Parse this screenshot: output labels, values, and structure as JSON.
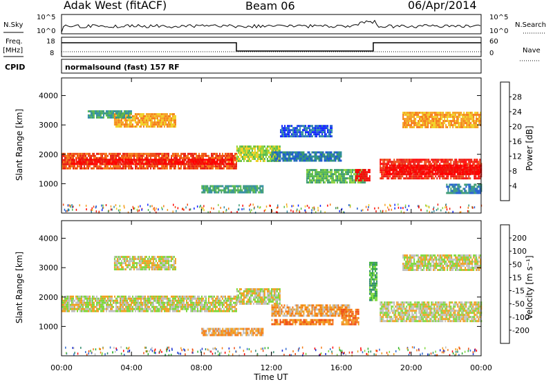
{
  "header": {
    "station": "Adak West (fitACF)",
    "beam": "Beam 06",
    "date": "06/Apr/2014"
  },
  "params": {
    "nsky_label": "N.Sky",
    "nsearch_label": "N.Search",
    "nsky_ticks": [
      "10^5",
      "10^0"
    ],
    "nsearch_ticks": [
      "10^5",
      "10^0"
    ],
    "freq_label_top": "Freq.",
    "freq_label_unit": "[MHz]",
    "freq_ticks": [
      "18",
      "8"
    ],
    "nave_label": "Nave",
    "nave_ticks": [
      "60",
      "0"
    ],
    "cpid_label": "CPID",
    "cpid_text": "normalsound (fast) 157 RF"
  },
  "chart_data": [
    {
      "type": "heatmap",
      "title": "Power",
      "xlabel": "Time UT",
      "ylabel": "Slant Range [km]",
      "xlim": [
        0,
        24
      ],
      "ylim": [
        0,
        4600
      ],
      "x_ticks": [
        "00:00",
        "04:00",
        "08:00",
        "12:00",
        "16:00",
        "20:00",
        "00:00"
      ],
      "y_ticks": [
        "1000",
        "2000",
        "3000",
        "4000"
      ],
      "colorbar": {
        "label": "Power [dB]",
        "ticks": [
          "4",
          "8",
          "12",
          "16",
          "20",
          "24",
          "28"
        ],
        "colors": [
          "#0b20ff",
          "#1f5bd0",
          "#2c8aa0",
          "#3a9a70",
          "#55b84a",
          "#8cd23a",
          "#f0d020",
          "#f5a020",
          "#f57a15",
          "#ef4a12",
          "#e81c10",
          "#ff0000"
        ]
      },
      "bands": [
        {
          "t": [
            0.0,
            10.0
          ],
          "r0": 1500,
          "r1": 2050,
          "level": 9
        },
        {
          "t": [
            0.5,
            9.8
          ],
          "r0": 1650,
          "r1": 1850,
          "level": 11
        },
        {
          "t": [
            10.0,
            12.5
          ],
          "r0": 1750,
          "r1": 2300,
          "level": 5
        },
        {
          "t": [
            12.0,
            16.0
          ],
          "r0": 1800,
          "r1": 2100,
          "level": 2
        },
        {
          "t": [
            14.0,
            17.4
          ],
          "r0": 1050,
          "r1": 1500,
          "level": 4
        },
        {
          "t": [
            16.8,
            17.6
          ],
          "r0": 1100,
          "r1": 1500,
          "level": 11
        },
        {
          "t": [
            8.0,
            11.5
          ],
          "r0": 700,
          "r1": 950,
          "level": 3
        },
        {
          "t": [
            3.0,
            6.5
          ],
          "r0": 2950,
          "r1": 3400,
          "level": 7
        },
        {
          "t": [
            1.5,
            4.0
          ],
          "r0": 3250,
          "r1": 3500,
          "level": 3
        },
        {
          "t": [
            18.2,
            24.0
          ],
          "r0": 1200,
          "r1": 1850,
          "level": 10
        },
        {
          "t": [
            18.5,
            24.0
          ],
          "r0": 1300,
          "r1": 1650,
          "level": 11
        },
        {
          "t": [
            19.5,
            24.0
          ],
          "r0": 2950,
          "r1": 3450,
          "level": 7
        },
        {
          "t": [
            22.0,
            24.0
          ],
          "r0": 700,
          "r1": 1000,
          "level": 2
        },
        {
          "t": [
            12.5,
            15.5
          ],
          "r0": 2600,
          "r1": 3000,
          "level": 1
        }
      ]
    },
    {
      "type": "heatmap",
      "title": "Velocity",
      "xlabel": "Time UT",
      "ylabel": "Slant Range [km]",
      "xlim": [
        0,
        24
      ],
      "ylim": [
        0,
        4600
      ],
      "x_ticks": [
        "00:00",
        "04:00",
        "08:00",
        "12:00",
        "16:00",
        "20:00",
        "00:00"
      ],
      "y_ticks": [
        "1000",
        "2000",
        "3000",
        "4000"
      ],
      "colorbar": {
        "label": "Velocity [m s⁻¹]",
        "ticks": [
          "200",
          "100",
          "50",
          "15",
          "-15",
          "-50",
          "-100",
          "-200"
        ],
        "colors": [
          "#1a2bd6",
          "#2f6ad0",
          "#2f8a6a",
          "#2fb02f",
          "#7dd83a",
          "#bebebe",
          "#f0a020",
          "#f57a15",
          "#ef4a12",
          "#ff0000"
        ]
      },
      "bands": [
        {
          "t": [
            0.0,
            10.0
          ],
          "r0": 1500,
          "r1": 2050,
          "level": 5
        },
        {
          "t": [
            10.0,
            12.5
          ],
          "r0": 1750,
          "r1": 2300,
          "level": 5
        },
        {
          "t": [
            12.0,
            16.5
          ],
          "r0": 1350,
          "r1": 1750,
          "level": 6
        },
        {
          "t": [
            8.0,
            11.5
          ],
          "r0": 700,
          "r1": 950,
          "level": 6
        },
        {
          "t": [
            12.0,
            15.5
          ],
          "r0": 1050,
          "r1": 1250,
          "level": 7
        },
        {
          "t": [
            16.0,
            17.0
          ],
          "r0": 1100,
          "r1": 1600,
          "level": 7
        },
        {
          "t": [
            17.6,
            18.0
          ],
          "r0": 1900,
          "r1": 3200,
          "level": 3
        },
        {
          "t": [
            3.0,
            6.5
          ],
          "r0": 2950,
          "r1": 3400,
          "level": 5
        },
        {
          "t": [
            18.2,
            24.0
          ],
          "r0": 1200,
          "r1": 1850,
          "level": 5
        },
        {
          "t": [
            19.5,
            24.0
          ],
          "r0": 2950,
          "r1": 3450,
          "level": 5
        }
      ]
    }
  ]
}
